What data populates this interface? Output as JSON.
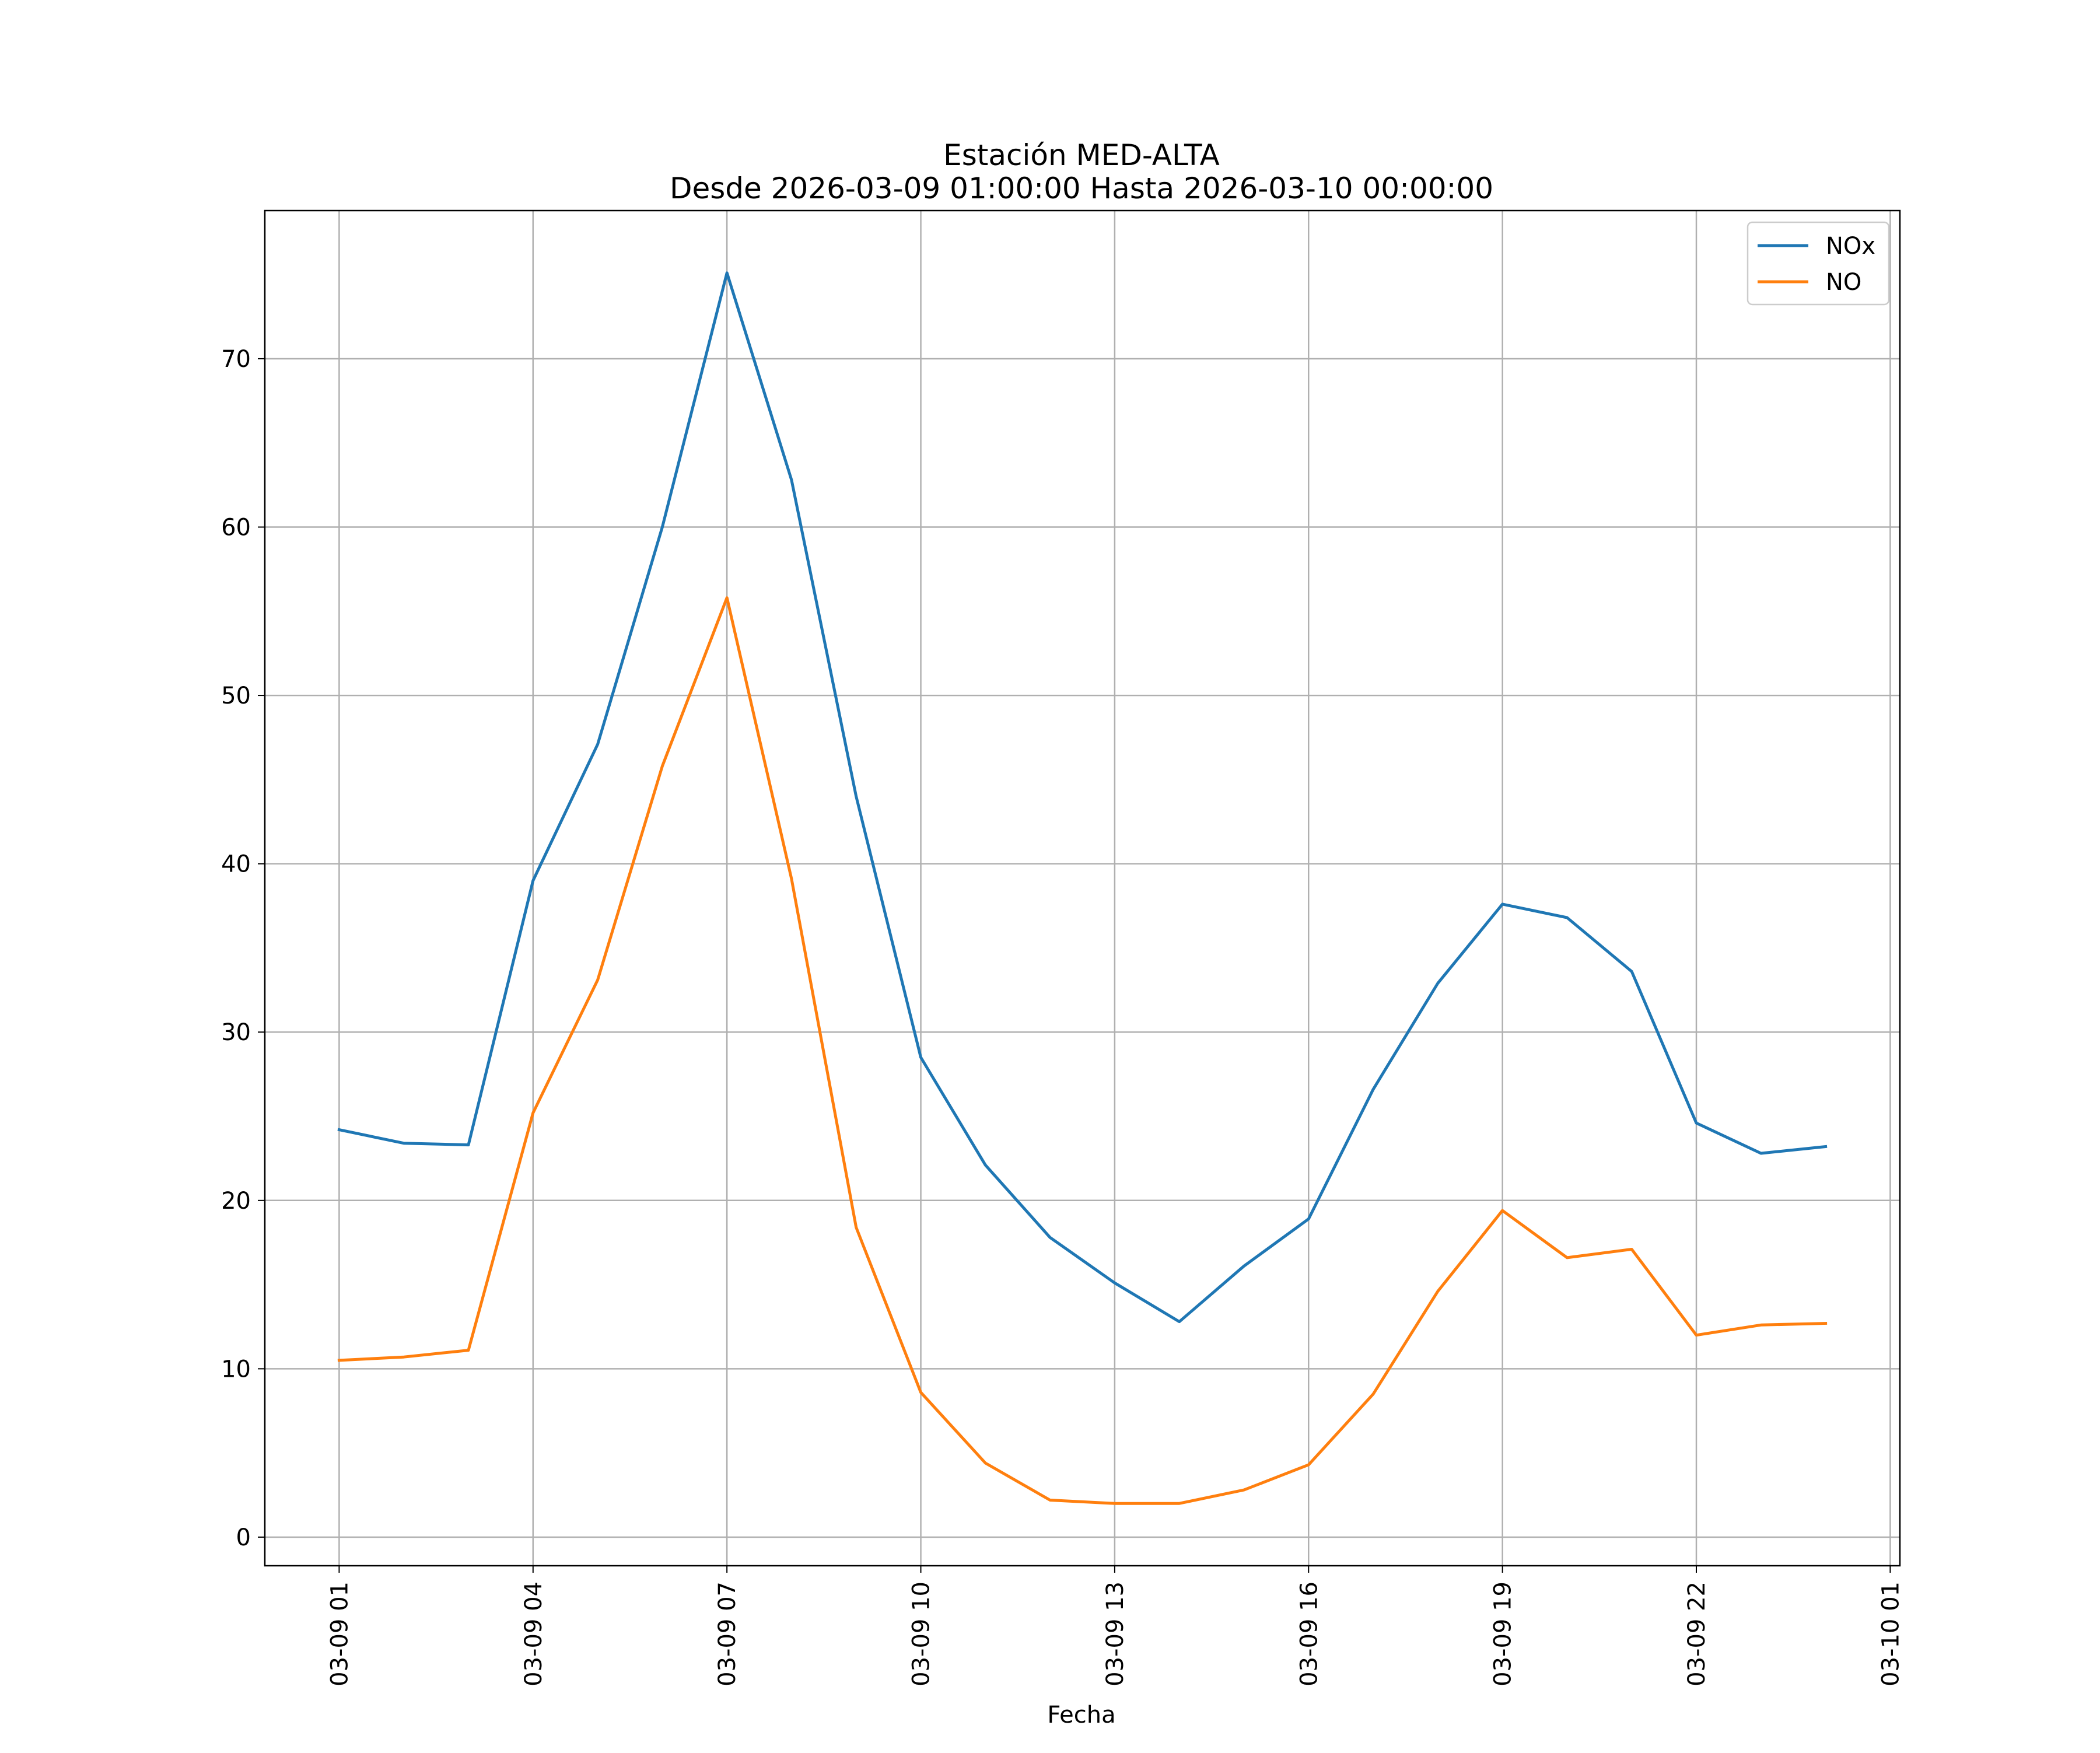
{
  "chart_data": {
    "type": "line",
    "title": "Estación MED-ALTA",
    "subtitle": "Desde 2026-03-09 01:00:00 Hasta 2026-03-10 00:00:00",
    "xlabel": "Fecha",
    "ylabel": "",
    "x": [
      "2026-03-09 01:00",
      "2026-03-09 02:00",
      "2026-03-09 03:00",
      "2026-03-09 04:00",
      "2026-03-09 05:00",
      "2026-03-09 06:00",
      "2026-03-09 07:00",
      "2026-03-09 08:00",
      "2026-03-09 09:00",
      "2026-03-09 10:00",
      "2026-03-09 11:00",
      "2026-03-09 12:00",
      "2026-03-09 13:00",
      "2026-03-09 14:00",
      "2026-03-09 15:00",
      "2026-03-09 16:00",
      "2026-03-09 17:00",
      "2026-03-09 18:00",
      "2026-03-09 19:00",
      "2026-03-09 20:00",
      "2026-03-09 21:00",
      "2026-03-09 22:00",
      "2026-03-09 23:00",
      "2026-03-10 00:00"
    ],
    "series": [
      {
        "name": "NOx",
        "color": "#1f77b4",
        "values": [
          24.2,
          23.4,
          23.3,
          39.0,
          47.1,
          60.0,
          75.1,
          62.8,
          44.0,
          28.5,
          22.1,
          17.8,
          15.1,
          12.8,
          16.1,
          18.9,
          26.6,
          32.9,
          37.6,
          36.8,
          33.6,
          24.6,
          22.8,
          23.2
        ]
      },
      {
        "name": "NO",
        "color": "#ff7f0e",
        "values": [
          10.5,
          10.7,
          11.1,
          25.2,
          33.1,
          45.8,
          55.8,
          39.1,
          18.4,
          8.6,
          4.4,
          2.2,
          2.0,
          2.0,
          2.8,
          4.3,
          8.5,
          14.6,
          19.4,
          16.6,
          17.1,
          12.0,
          12.6,
          12.7
        ]
      }
    ],
    "xlim": [
      "2026-03-08 23:51",
      "2026-03-10 01:09"
    ],
    "ylim": [
      -1.7,
      78.8
    ],
    "xticks": [
      "2026-03-09 01:00",
      "2026-03-09 04:00",
      "2026-03-09 07:00",
      "2026-03-09 10:00",
      "2026-03-09 13:00",
      "2026-03-09 16:00",
      "2026-03-09 19:00",
      "2026-03-09 22:00",
      "2026-03-10 01:00"
    ],
    "xtick_labels": [
      "03-09 01",
      "03-09 04",
      "03-09 07",
      "03-09 10",
      "03-09 13",
      "03-09 16",
      "03-09 19",
      "03-09 22",
      "03-10 01"
    ],
    "yticks": [
      0,
      10,
      20,
      30,
      40,
      50,
      60,
      70
    ],
    "ytick_labels": [
      "0",
      "10",
      "20",
      "30",
      "40",
      "50",
      "60",
      "70"
    ],
    "grid": true,
    "legend": "upper right"
  }
}
